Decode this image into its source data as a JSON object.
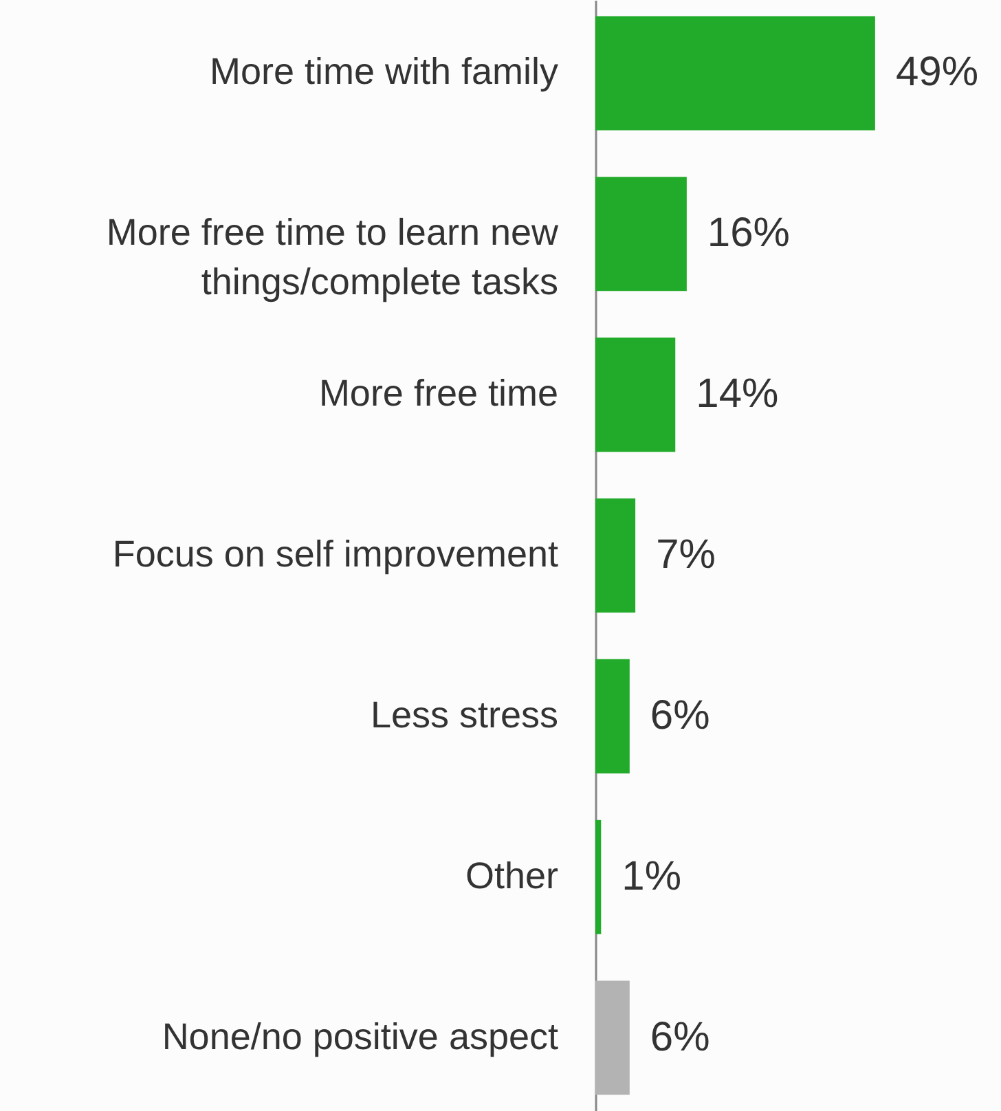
{
  "chart_data": {
    "type": "bar",
    "orientation": "horizontal",
    "categories": [
      "More time with family",
      "More free time to learn new things/complete tasks",
      "More free time",
      "Focus on self improvement",
      "Less stress",
      "Other",
      "None/no positive aspect"
    ],
    "values": [
      49,
      16,
      14,
      7,
      6,
      1,
      6
    ],
    "colors": [
      "#22ab2a",
      "#22ab2a",
      "#22ab2a",
      "#22ab2a",
      "#22ab2a",
      "#22ab2a",
      "#b3b3b3"
    ],
    "value_labels": [
      "49%",
      "16%",
      "14%",
      "7%",
      "6%",
      "1%",
      "6%"
    ]
  }
}
